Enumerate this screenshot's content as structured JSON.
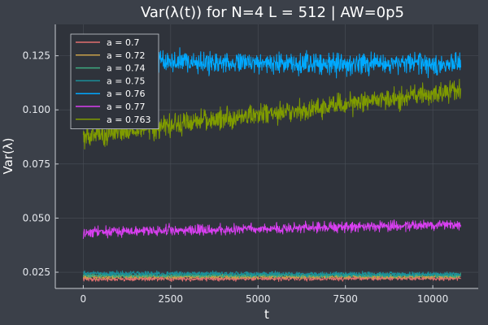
{
  "chart_data": {
    "type": "line",
    "title": "Var(λ(t)) for N=4 L = 512 | AW=0p5",
    "xlabel": "t",
    "ylabel": "Var(λ)",
    "xlim": [
      -800,
      11300
    ],
    "ylim": [
      0.0175,
      0.1395
    ],
    "x_ticks": [
      0,
      2500,
      5000,
      7500,
      10000
    ],
    "x_tick_labels": [
      "0",
      "2500",
      "5000",
      "7500",
      "10000"
    ],
    "y_ticks": [
      0.025,
      0.05,
      0.075,
      0.1,
      0.125
    ],
    "y_tick_labels": [
      "0.025",
      "0.050",
      "0.075",
      "0.100",
      "0.125"
    ],
    "grid": true,
    "legend_position": "top-left",
    "x_range": [
      0,
      10800
    ],
    "series": [
      {
        "name": "a = 0.7",
        "color": "#e26f6f",
        "start": 0.0218,
        "end": 0.0222,
        "noise": 0.0009
      },
      {
        "name": "a = 0.72",
        "color": "#c8a04a",
        "start": 0.0228,
        "end": 0.023,
        "noise": 0.0009
      },
      {
        "name": "a = 0.74",
        "color": "#3da87f",
        "start": 0.0235,
        "end": 0.0235,
        "noise": 0.0009
      },
      {
        "name": "a = 0.75",
        "color": "#1a8f9a",
        "start": 0.0245,
        "end": 0.024,
        "noise": 0.001
      },
      {
        "name": "a = 0.76",
        "color": "#00a9ff",
        "start": 0.1225,
        "end": 0.121,
        "noise": 0.0045
      },
      {
        "name": "a = 0.77",
        "color": "#d83ff0",
        "start": 0.0435,
        "end": 0.047,
        "noise": 0.0022
      },
      {
        "name": "a = 0.763",
        "color": "#7f9b00",
        "start": 0.088,
        "end": 0.109,
        "noise": 0.0045
      }
    ]
  },
  "colors": {
    "background": "#3b4049",
    "plot_background": "#2f333b",
    "grid": "#4a4f58",
    "text": "#e6e9ee"
  }
}
